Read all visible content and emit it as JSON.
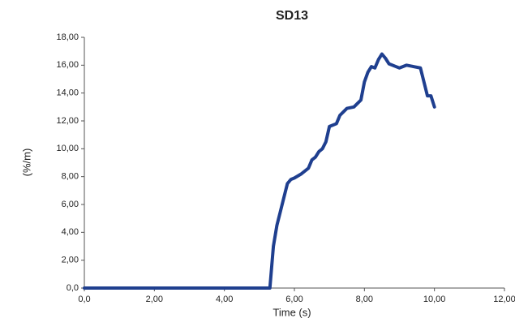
{
  "chart_data": {
    "type": "line",
    "title": "SD13",
    "xlabel": "Time (s)",
    "ylabel": "(%/m)",
    "x": [
      0,
      5.3,
      5.35,
      5.4,
      5.5,
      5.6,
      5.7,
      5.8,
      5.9,
      6.0,
      6.2,
      6.4,
      6.5,
      6.6,
      6.7,
      6.8,
      6.9,
      7.0,
      7.2,
      7.3,
      7.5,
      7.7,
      7.9,
      8.0,
      8.1,
      8.2,
      8.3,
      8.4,
      8.5,
      8.6,
      8.7,
      8.9,
      9.0,
      9.2,
      9.4,
      9.6,
      9.7,
      9.8,
      9.9,
      10.0
    ],
    "values": [
      0,
      0,
      1.5,
      3,
      4.5,
      5.5,
      6.5,
      7.5,
      7.8,
      7.9,
      8.2,
      8.6,
      9.2,
      9.4,
      9.8,
      10.0,
      10.5,
      11.6,
      11.8,
      12.4,
      12.9,
      13.0,
      13.5,
      14.8,
      15.5,
      15.9,
      15.8,
      16.4,
      16.8,
      16.5,
      16.1,
      15.9,
      15.8,
      16.0,
      15.9,
      15.8,
      14.8,
      13.8,
      13.8,
      13.0
    ],
    "color": "#1f3f8f",
    "xlim": [
      0,
      12
    ],
    "xticks": [
      {
        "value": 0,
        "label": "0,0"
      },
      {
        "value": 2,
        "label": "2,00"
      },
      {
        "value": 4,
        "label": "4,00"
      },
      {
        "value": 6,
        "label": "6,00"
      },
      {
        "value": 8,
        "label": "8,00"
      },
      {
        "value": 10,
        "label": "10,00"
      },
      {
        "value": 12,
        "label": "12,00"
      }
    ],
    "ylim": [
      0,
      18
    ],
    "yticks": [
      {
        "value": 0,
        "label": "0,0"
      },
      {
        "value": 2,
        "label": "2,00"
      },
      {
        "value": 4,
        "label": "4,00"
      },
      {
        "value": 6,
        "label": "6,00"
      },
      {
        "value": 8,
        "label": "8,00"
      },
      {
        "value": 10,
        "label": "10,00"
      },
      {
        "value": 12,
        "label": "12,00"
      },
      {
        "value": 14,
        "label": "14,00"
      },
      {
        "value": 16,
        "label": "16,00"
      },
      {
        "value": 18,
        "label": "18,00"
      }
    ],
    "grid": false
  }
}
